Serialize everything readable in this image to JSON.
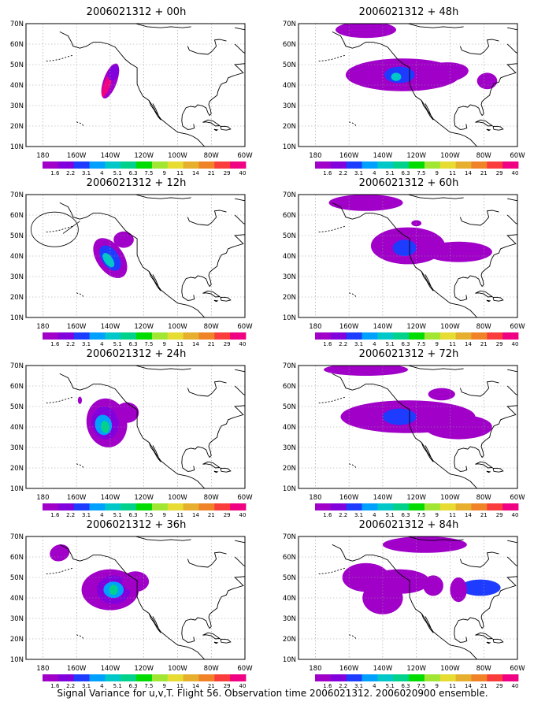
{
  "panels": [
    {
      "title": "2006021312 + 00h"
    },
    {
      "title": "2006021312 + 48h"
    },
    {
      "title": "2006021312 + 12h"
    },
    {
      "title": "2006021312 + 60h"
    },
    {
      "title": "2006021312 + 24h"
    },
    {
      "title": "2006021312 + 72h"
    },
    {
      "title": "2006021312 + 36h"
    },
    {
      "title": "2006021312 + 84h"
    }
  ],
  "lat_labels": [
    "10N",
    "20N",
    "30N",
    "40N",
    "50N",
    "60N",
    "70N"
  ],
  "lon_labels": [
    "180",
    "160W",
    "140W",
    "120W",
    "100W",
    "80W",
    "60W"
  ],
  "legend": {
    "labels": [
      "1.6",
      "2.2",
      "3.1",
      "4",
      "5.1",
      "6.3",
      "7.5",
      "9",
      "11",
      "14",
      "21",
      "29",
      "40"
    ],
    "colors": [
      "#a000c8",
      "#8200dc",
      "#1e3cff",
      "#00a0ff",
      "#00c8c8",
      "#00d28c",
      "#00dc00",
      "#a0e632",
      "#e6dc32",
      "#e6af2d",
      "#f08228",
      "#fa3c3c",
      "#f00082"
    ]
  },
  "footer": "Signal Variance for u,v,T. Flight 56. Observation time 2006021312. 2006020900 ensemble."
}
